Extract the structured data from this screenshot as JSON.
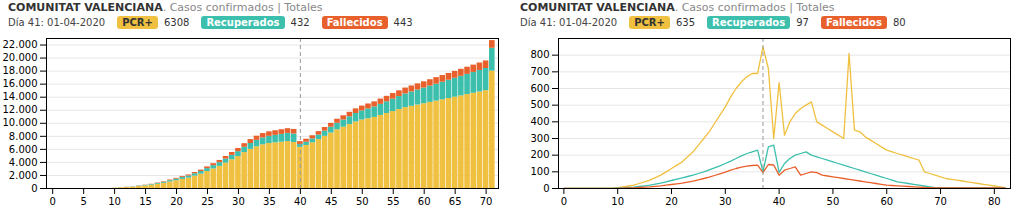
{
  "chart_data": [
    {
      "type": "bar",
      "stacked": true,
      "title": "COMUNITAT VALENCIANA",
      "subtitle": ". Casos confirmados | Totales",
      "annotations": [
        "Día 41: 01-04-2020",
        "6308",
        "432",
        "443"
      ],
      "legend": "top",
      "x": [
        0,
        1,
        2,
        3,
        4,
        5,
        6,
        7,
        8,
        9,
        10,
        11,
        12,
        13,
        14,
        15,
        16,
        17,
        18,
        19,
        20,
        21,
        22,
        23,
        24,
        25,
        26,
        27,
        28,
        29,
        30,
        31,
        32,
        33,
        34,
        35,
        36,
        37,
        38,
        39,
        40,
        41,
        42,
        43,
        44,
        45,
        46,
        47,
        48,
        49,
        50,
        51,
        52,
        53,
        54,
        55,
        56,
        57,
        58,
        59,
        60,
        61,
        62,
        63,
        64,
        65,
        66,
        67,
        68,
        69,
        70,
        71
      ],
      "series": [
        {
          "name": "PCR+",
          "color": "#f0c040",
          "values": [
            0,
            0,
            0,
            0,
            0,
            0,
            0,
            0,
            0,
            0,
            50,
            100,
            150,
            200,
            300,
            400,
            500,
            650,
            800,
            1000,
            1200,
            1400,
            1600,
            1900,
            2200,
            2600,
            3000,
            3400,
            3900,
            4400,
            4900,
            5500,
            6000,
            6400,
            6700,
            6900,
            7000,
            7100,
            7200,
            7050,
            6308,
            6600,
            7000,
            7500,
            8000,
            8500,
            9000,
            9400,
            9800,
            10200,
            10500,
            10700,
            10900,
            11200,
            11500,
            11800,
            12100,
            12400,
            12600,
            12800,
            13000,
            13200,
            13400,
            13600,
            13800,
            14000,
            14200,
            14400,
            14600,
            14800,
            15000,
            18000
          ]
        },
        {
          "name": "Recuperados",
          "color": "#3dbfad",
          "values": [
            0,
            0,
            0,
            0,
            0,
            0,
            0,
            0,
            0,
            0,
            10,
            20,
            30,
            40,
            60,
            80,
            100,
            130,
            160,
            200,
            240,
            280,
            320,
            360,
            400,
            450,
            500,
            560,
            620,
            680,
            750,
            820,
            900,
            980,
            1050,
            1100,
            1150,
            1200,
            1250,
            1300,
            432,
            500,
            600,
            700,
            800,
            900,
            1000,
            1100,
            1200,
            1300,
            1400,
            1500,
            1600,
            1700,
            1800,
            1900,
            2000,
            2100,
            2200,
            2300,
            2400,
            2500,
            2600,
            2700,
            2800,
            2900,
            3000,
            3100,
            3200,
            3300,
            3400,
            3500
          ]
        },
        {
          "name": "Fallecidos",
          "color": "#e8602c",
          "values": [
            0,
            0,
            0,
            0,
            0,
            0,
            0,
            0,
            0,
            0,
            5,
            10,
            15,
            20,
            30,
            40,
            50,
            65,
            80,
            100,
            120,
            140,
            160,
            190,
            220,
            260,
            300,
            340,
            390,
            440,
            490,
            550,
            600,
            640,
            670,
            690,
            700,
            710,
            720,
            705,
            443,
            460,
            490,
            520,
            550,
            590,
            620,
            650,
            680,
            710,
            740,
            760,
            780,
            810,
            830,
            860,
            880,
            900,
            920,
            940,
            960,
            980,
            1000,
            1020,
            1040,
            1060,
            1080,
            1100,
            1120,
            1140,
            1160,
            1180
          ]
        }
      ],
      "vline": 40,
      "xlim": [
        -1,
        72
      ],
      "xticks": [
        0,
        5,
        10,
        15,
        20,
        25,
        30,
        35,
        40,
        45,
        50,
        55,
        60,
        65,
        70
      ],
      "ylim": [
        0,
        23000
      ],
      "yticks": [
        0,
        {
          "value": 2000,
          "label": "2.000"
        },
        {
          "value": 4000,
          "label": "4.000"
        },
        {
          "value": 6000,
          "label": "6.000"
        },
        {
          "value": 8000,
          "label": "8.000"
        },
        {
          "value": 10000,
          "label": "10.000"
        },
        {
          "value": 12000,
          "label": "12.000"
        },
        {
          "value": 14000,
          "label": "14.000"
        },
        {
          "value": 16000,
          "label": "16.000"
        },
        {
          "value": 18000,
          "label": "18.000"
        },
        {
          "value": 20000,
          "label": "20.000"
        },
        {
          "value": 22000,
          "label": "22.000"
        }
      ],
      "grid": true
    },
    {
      "type": "line",
      "title": "COMUNITAT VALENCIANA",
      "subtitle": ". Casos confirmados | Totales",
      "annotations": [
        "Día 41: 01-04-2020",
        "635",
        "97",
        "80"
      ],
      "legend": "top",
      "x": [
        0,
        1,
        2,
        3,
        4,
        5,
        6,
        7,
        8,
        9,
        10,
        11,
        12,
        13,
        14,
        15,
        16,
        17,
        18,
        19,
        20,
        21,
        22,
        23,
        24,
        25,
        26,
        27,
        28,
        29,
        30,
        31,
        32,
        33,
        34,
        35,
        36,
        37,
        38,
        39,
        40,
        41,
        42,
        43,
        44,
        45,
        46,
        47,
        48,
        49,
        50,
        51,
        52,
        53,
        54,
        55,
        56,
        57,
        58,
        59,
        60,
        61,
        62,
        63,
        64,
        65,
        66,
        67,
        68,
        69,
        70,
        71,
        72,
        73,
        74,
        75,
        76,
        77,
        78,
        79,
        80,
        81,
        82
      ],
      "series": [
        {
          "name": "PCR+",
          "color": "#f0c040",
          "values": [
            0,
            0,
            0,
            0,
            0,
            0,
            0,
            0,
            0,
            0,
            5,
            10,
            15,
            20,
            30,
            40,
            50,
            65,
            80,
            100,
            120,
            140,
            160,
            190,
            220,
            260,
            300,
            340,
            390,
            440,
            490,
            550,
            600,
            640,
            670,
            690,
            690,
            850,
            720,
            300,
            635,
            320,
            400,
            450,
            480,
            500,
            520,
            400,
            380,
            360,
            340,
            320,
            300,
            810,
            350,
            340,
            310,
            290,
            270,
            250,
            230,
            220,
            210,
            200,
            190,
            180,
            170,
            100,
            90,
            80,
            70,
            60,
            55,
            50,
            45,
            40,
            35,
            30,
            25,
            20,
            15,
            10,
            5
          ]
        },
        {
          "name": "Recuperados",
          "color": "#3dbfad",
          "values": [
            0,
            0,
            0,
            0,
            0,
            0,
            0,
            0,
            0,
            0,
            2,
            4,
            6,
            8,
            12,
            16,
            20,
            26,
            32,
            40,
            48,
            56,
            64,
            72,
            80,
            90,
            100,
            112,
            124,
            136,
            150,
            164,
            180,
            196,
            210,
            220,
            230,
            100,
            250,
            260,
            97,
            150,
            180,
            200,
            210,
            220,
            200,
            190,
            180,
            170,
            160,
            150,
            140,
            130,
            120,
            110,
            100,
            90,
            80,
            70,
            60,
            50,
            40,
            35,
            30,
            25,
            20,
            15,
            10,
            5,
            5,
            5,
            5,
            5,
            5,
            5,
            5,
            5,
            5,
            5,
            5,
            5,
            5
          ]
        },
        {
          "name": "Fallecidos",
          "color": "#e8602c",
          "values": [
            0,
            0,
            0,
            0,
            0,
            0,
            0,
            0,
            0,
            0,
            1,
            2,
            3,
            4,
            6,
            8,
            10,
            13,
            16,
            20,
            24,
            28,
            32,
            38,
            44,
            52,
            60,
            68,
            78,
            88,
            98,
            110,
            120,
            128,
            134,
            138,
            140,
            95,
            144,
            141,
            80,
            110,
            120,
            130,
            80,
            90,
            100,
            95,
            80,
            75,
            70,
            65,
            60,
            55,
            50,
            45,
            40,
            35,
            30,
            25,
            20,
            18,
            16,
            14,
            12,
            10,
            8,
            6,
            5,
            4,
            4,
            4,
            4,
            4,
            4,
            4,
            4,
            4,
            4,
            4,
            4,
            4,
            4
          ]
        }
      ],
      "vline": 37,
      "xlim": [
        -1,
        83
      ],
      "xticks": [
        0,
        10,
        20,
        30,
        40,
        50,
        60,
        70,
        80
      ],
      "ylim": [
        0,
        900
      ],
      "yticks": [
        0,
        100,
        200,
        300,
        400,
        500,
        600,
        700,
        800
      ],
      "grid": true
    }
  ]
}
